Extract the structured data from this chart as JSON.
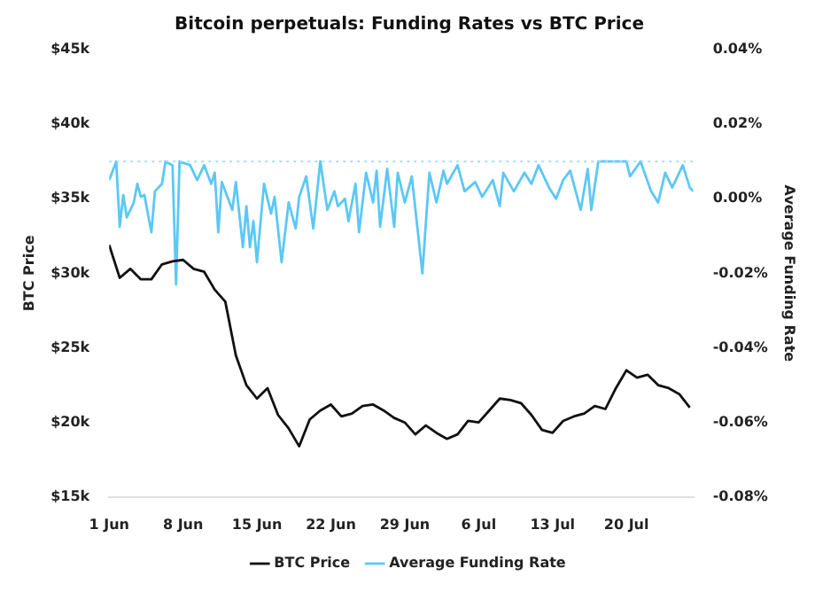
{
  "chart_data": {
    "type": "line",
    "title": "Bitcoin perpetuals: Funding Rates vs BTC Price",
    "ylabel": "BTC Price",
    "y2label": "Average Funding Rate",
    "xlim": [
      "--06-01",
      "--07-26T08:00"
    ],
    "xticks": [
      {
        "value": "--06-01",
        "label": "1 Jun"
      },
      {
        "value": "--06-08",
        "label": "8 Jun"
      },
      {
        "value": "--06-15",
        "label": "15 Jun"
      },
      {
        "value": "--06-22",
        "label": "22 Jun"
      },
      {
        "value": "--06-29",
        "label": "29 Jun"
      },
      {
        "value": "--07-06",
        "label": "6 Jul"
      },
      {
        "value": "--07-13",
        "label": "13 Jul"
      },
      {
        "value": "--07-20",
        "label": "20 Jul"
      }
    ],
    "ylim": [
      15000,
      45000
    ],
    "yticks": [
      {
        "value": 15000,
        "label": "$15k"
      },
      {
        "value": 20000,
        "label": "$20k"
      },
      {
        "value": 25000,
        "label": "$25k"
      },
      {
        "value": 30000,
        "label": "$30k"
      },
      {
        "value": 35000,
        "label": "$35k"
      },
      {
        "value": 40000,
        "label": "$40k"
      },
      {
        "value": 45000,
        "label": "$45k"
      }
    ],
    "y2lim": [
      -0.08,
      0.04
    ],
    "y2ticks": [
      {
        "value": -0.08,
        "label": "-0.08%"
      },
      {
        "value": -0.06,
        "label": "-0.06%"
      },
      {
        "value": -0.04,
        "label": "-0.04%"
      },
      {
        "value": -0.02,
        "label": "-0.02%"
      },
      {
        "value": 0,
        "label": "0.00%"
      },
      {
        "value": 0.02,
        "label": "0.02%"
      },
      {
        "value": 0.04,
        "label": "0.04%"
      }
    ],
    "grid": false,
    "legend": "bottom",
    "marker": "none",
    "line_style": "solid",
    "ref_lines": [
      {
        "axis": "y2",
        "value": 0.01,
        "color": "#a8dcf5",
        "line_style": "dotted"
      }
    ],
    "series": [
      {
        "name": "BTC Price",
        "color": "#111111",
        "x": [
          "--06-01",
          "--06-02",
          "--06-03",
          "--06-04",
          "--06-05",
          "--06-06",
          "--06-07",
          "--06-08",
          "--06-09",
          "--06-10",
          "--06-11",
          "--06-12",
          "--06-13",
          "--06-14",
          "--06-15",
          "--06-16",
          "--06-17",
          "--06-18",
          "--06-19",
          "--06-20",
          "--06-21",
          "--06-22",
          "--06-23",
          "--06-24",
          "--06-25",
          "--06-26",
          "--06-27",
          "--06-28",
          "--06-29",
          "--06-30",
          "--07-01",
          "--07-02",
          "--07-03",
          "--07-04",
          "--07-05",
          "--07-06",
          "--07-07",
          "--07-08",
          "--07-09",
          "--07-10",
          "--07-11",
          "--07-12",
          "--07-13",
          "--07-14",
          "--07-15",
          "--07-16",
          "--07-17",
          "--07-18",
          "--07-19",
          "--07-20",
          "--07-21",
          "--07-22",
          "--07-23",
          "--07-24",
          "--07-25",
          "--07-26"
        ],
        "values": [
          31900,
          29700,
          30300,
          29600,
          29600,
          30600,
          30800,
          30900,
          30300,
          30100,
          28900,
          28100,
          24500,
          22500,
          21600,
          22300,
          20500,
          19600,
          18400,
          20200,
          20800,
          21200,
          20400,
          20600,
          21100,
          21200,
          20800,
          20300,
          20000,
          19200,
          19800,
          19300,
          18900,
          19200,
          20100,
          20000,
          20800,
          21600,
          21500,
          21300,
          20500,
          19500,
          19300,
          20100,
          20400,
          20600,
          21100,
          20900,
          22300,
          23500,
          23000,
          23200,
          22500,
          22300,
          21900,
          21000
        ]
      },
      {
        "name": "Average Funding Rate",
        "color": "#5bc8f5",
        "axis": "y2",
        "x": [
          "--06-01T00:00",
          "--06-01T16:00",
          "--06-02T00:00",
          "--06-02T08:00",
          "--06-02T16:00",
          "--06-03T08:00",
          "--06-03T16:00",
          "--06-04T00:00",
          "--06-04T08:00",
          "--06-05T00:00",
          "--06-05T08:00",
          "--06-06T00:00",
          "--06-06T08:00",
          "--06-07T00:00",
          "--06-07T08:00",
          "--06-07T16:00",
          "--06-08T16:00",
          "--06-09T08:00",
          "--06-10T00:00",
          "--06-10T16:00",
          "--06-11T00:00",
          "--06-11T08:00",
          "--06-11T16:00",
          "--06-12T16:00",
          "--06-13T00:00",
          "--06-13T16:00",
          "--06-14T00:00",
          "--06-14T08:00",
          "--06-14T16:00",
          "--06-15T00:00",
          "--06-15T16:00",
          "--06-16T08:00",
          "--06-16T16:00",
          "--06-17T08:00",
          "--06-18T00:00",
          "--06-18T16:00",
          "--06-19T00:00",
          "--06-19T16:00",
          "--06-20T08:00",
          "--06-21T00:00",
          "--06-21T16:00",
          "--06-22T08:00",
          "--06-22T16:00",
          "--06-23T08:00",
          "--06-23T16:00",
          "--06-24T08:00",
          "--06-24T16:00",
          "--06-25T08:00",
          "--06-26T00:00",
          "--06-26T08:00",
          "--06-26T16:00",
          "--06-27T08:00",
          "--06-28T00:00",
          "--06-28T08:00",
          "--06-29T00:00",
          "--06-29T16:00",
          "--06-30T16:00",
          "--07-01T08:00",
          "--07-02T00:00",
          "--07-02T16:00",
          "--07-03T00:00",
          "--07-04T00:00",
          "--07-04T16:00",
          "--07-05T16:00",
          "--07-06T08:00",
          "--07-07T08:00",
          "--07-08T00:00",
          "--07-08T08:00",
          "--07-09T08:00",
          "--07-10T08:00",
          "--07-11T00:00",
          "--07-11T16:00",
          "--07-12T16:00",
          "--07-13T08:00",
          "--07-14T00:00",
          "--07-14T16:00",
          "--07-15T16:00",
          "--07-16T08:00",
          "--07-16T16:00",
          "--07-17T08:00",
          "--07-20T00:00",
          "--07-20T08:00",
          "--07-21T08:00",
          "--07-22T08:00",
          "--07-23T00:00",
          "--07-23T16:00",
          "--07-24T08:00",
          "--07-25T08:00",
          "--07-26T00:00",
          "--07-26T08:00"
        ],
        "values": [
          0.005,
          0.01,
          -0.0075,
          0.001,
          -0.005,
          -0.001,
          0.004,
          0.0005,
          0.001,
          -0.009,
          0.002,
          0.004,
          0.01,
          0.009,
          -0.023,
          0.01,
          0.009,
          0.005,
          0.009,
          0.004,
          0.007,
          -0.009,
          0.0045,
          -0.003,
          0.0045,
          -0.013,
          -0.002,
          -0.013,
          -0.006,
          -0.017,
          0.004,
          -0.004,
          0.0005,
          -0.017,
          -0.001,
          -0.008,
          0.0005,
          0.006,
          -0.008,
          0.01,
          -0.003,
          0.002,
          -0.002,
          0,
          -0.006,
          0.004,
          -0.009,
          0.007,
          -0.001,
          0.0075,
          -0.0075,
          0.008,
          -0.0075,
          0.007,
          -0.001,
          0.006,
          -0.02,
          0.007,
          -0.001,
          0.0075,
          0.004,
          0.009,
          0.002,
          0.0045,
          0.0005,
          0.005,
          -0.002,
          0.007,
          0.002,
          0.007,
          0.004,
          0.009,
          0.003,
          0,
          0.005,
          0.0075,
          -0.003,
          0.008,
          -0.003,
          0.01,
          0.01,
          0.006,
          0.01,
          0.002,
          -0.001,
          0.007,
          0.003,
          0.009,
          0.003,
          0.002
        ]
      }
    ]
  }
}
